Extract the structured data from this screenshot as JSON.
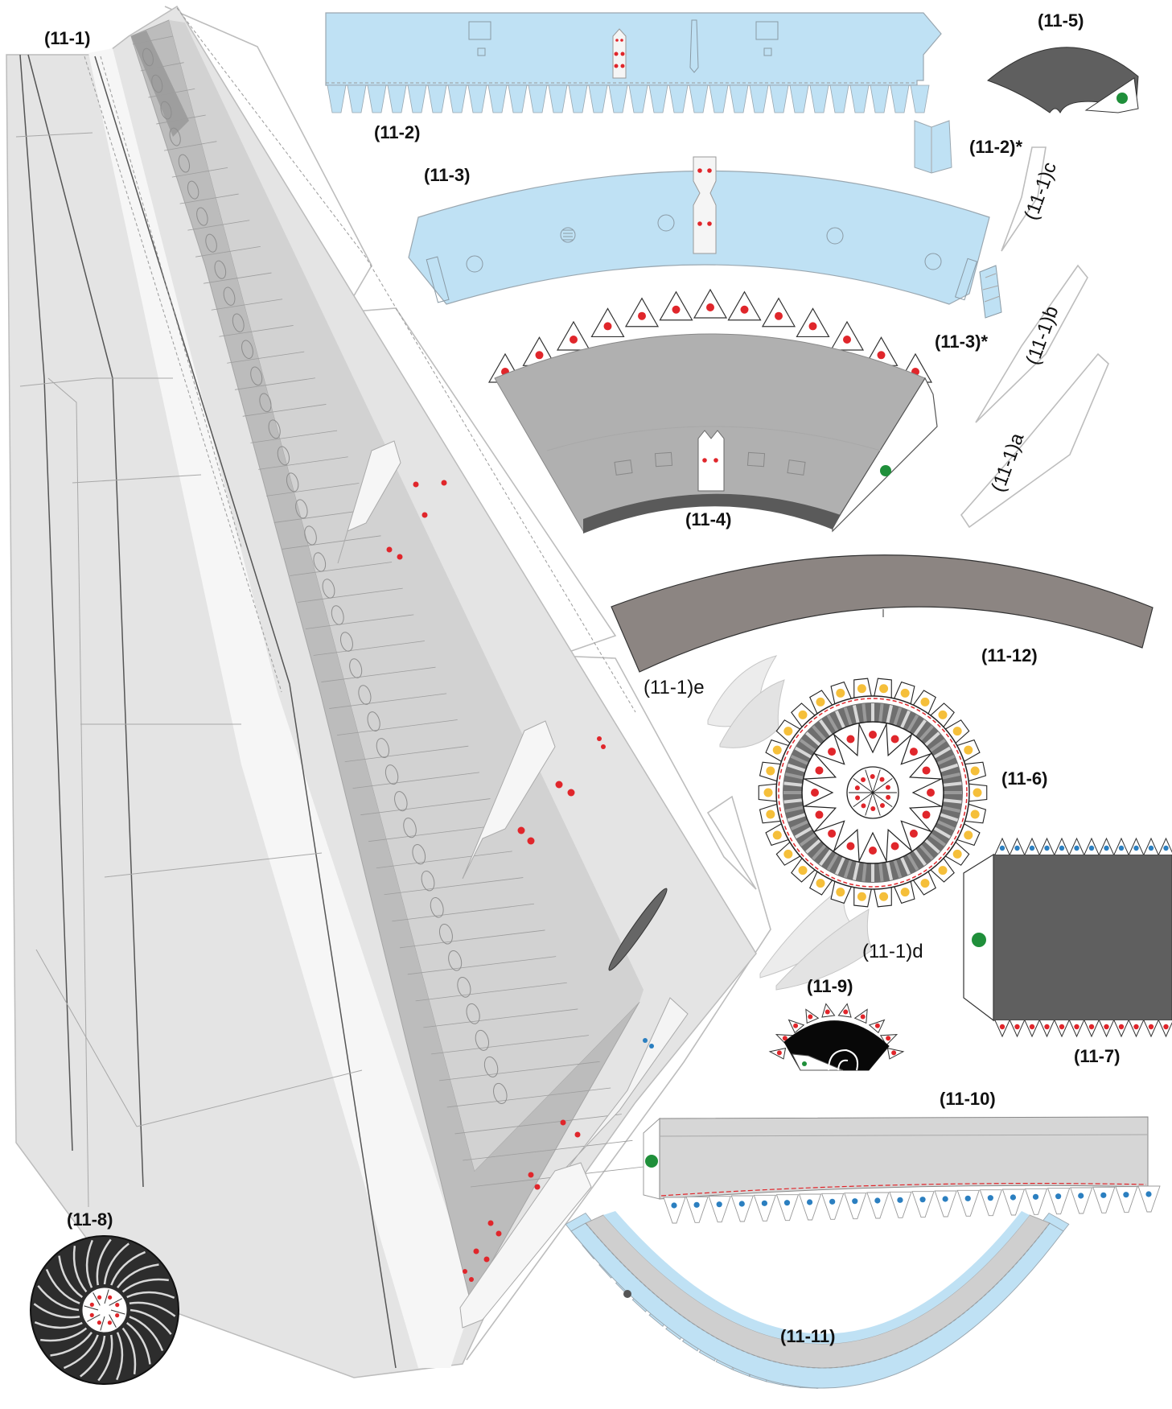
{
  "sheet": {
    "part_labels": {
      "p11_1": "(11-1)",
      "p11_2": "(11-2)",
      "p11_2s": "(11-2)*",
      "p11_3": "(11-3)",
      "p11_3s": "(11-3)*",
      "p11_4": "(11-4)",
      "p11_5": "(11-5)",
      "p11_6": "(11-6)",
      "p11_7": "(11-7)",
      "p11_8": "(11-8)",
      "p11_9": "(11-9)",
      "p11_10": "(11-10)",
      "p11_11": "(11-11)",
      "p11_12": "(11-12)",
      "p11_1a": "(11-1)a",
      "p11_1b": "(11-1)b",
      "p11_1c": "(11-1)c",
      "p11_1d": "(11-1)d",
      "p11_1e": "(11-1)e"
    },
    "colors": {
      "light_blue": "#bfe1f4",
      "wing_light": "#e4e4e4",
      "wing_mid": "#cfcfcf",
      "wing_dark": "#b3b3b3",
      "dark_gray": "#5f5f5f",
      "taupe": "#8c8582",
      "glue_red": "#e0262b",
      "glue_yellow": "#f5bf3a",
      "glue_blue": "#2b7fc0",
      "glue_green": "#1f8f3a"
    }
  }
}
